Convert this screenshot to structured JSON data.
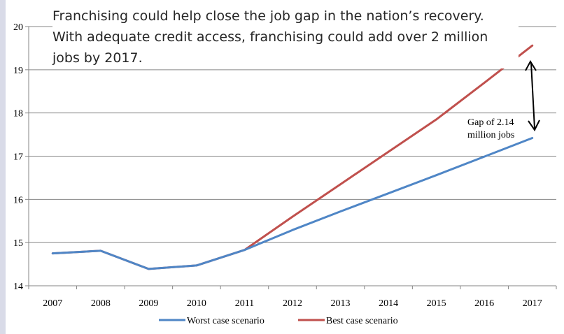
{
  "caption": {
    "lines": [
      "Franchising could help close the job gap in the nation’s recovery.",
      "With adequate credit access, franchising could add over 2 million",
      "jobs by 2017."
    ]
  },
  "chart_data": {
    "type": "line",
    "title": "",
    "xlabel": "",
    "ylabel": "",
    "x": [
      "2007",
      "2008",
      "2009",
      "2010",
      "2011",
      "2012",
      "2013",
      "2014",
      "2015",
      "2016",
      "2017"
    ],
    "ylim": [
      14,
      20
    ],
    "yticks": [
      14,
      15,
      16,
      17,
      18,
      19,
      20
    ],
    "grid": "horizontal",
    "legend": "bottom",
    "series": [
      {
        "name": "Worst case scenario",
        "color": "#4f86c6",
        "values": [
          14.75,
          14.81,
          14.39,
          14.47,
          14.83,
          15.29,
          15.72,
          16.14,
          16.56,
          16.99,
          17.42
        ]
      },
      {
        "name": "Best case scenario",
        "color": "#c0504d",
        "values": [
          14.75,
          14.81,
          14.39,
          14.47,
          14.83,
          15.6,
          16.35,
          17.1,
          17.85,
          18.7,
          19.56
        ]
      }
    ],
    "annotation": {
      "lines": [
        "Gap of 2.14",
        "million jobs"
      ]
    }
  }
}
